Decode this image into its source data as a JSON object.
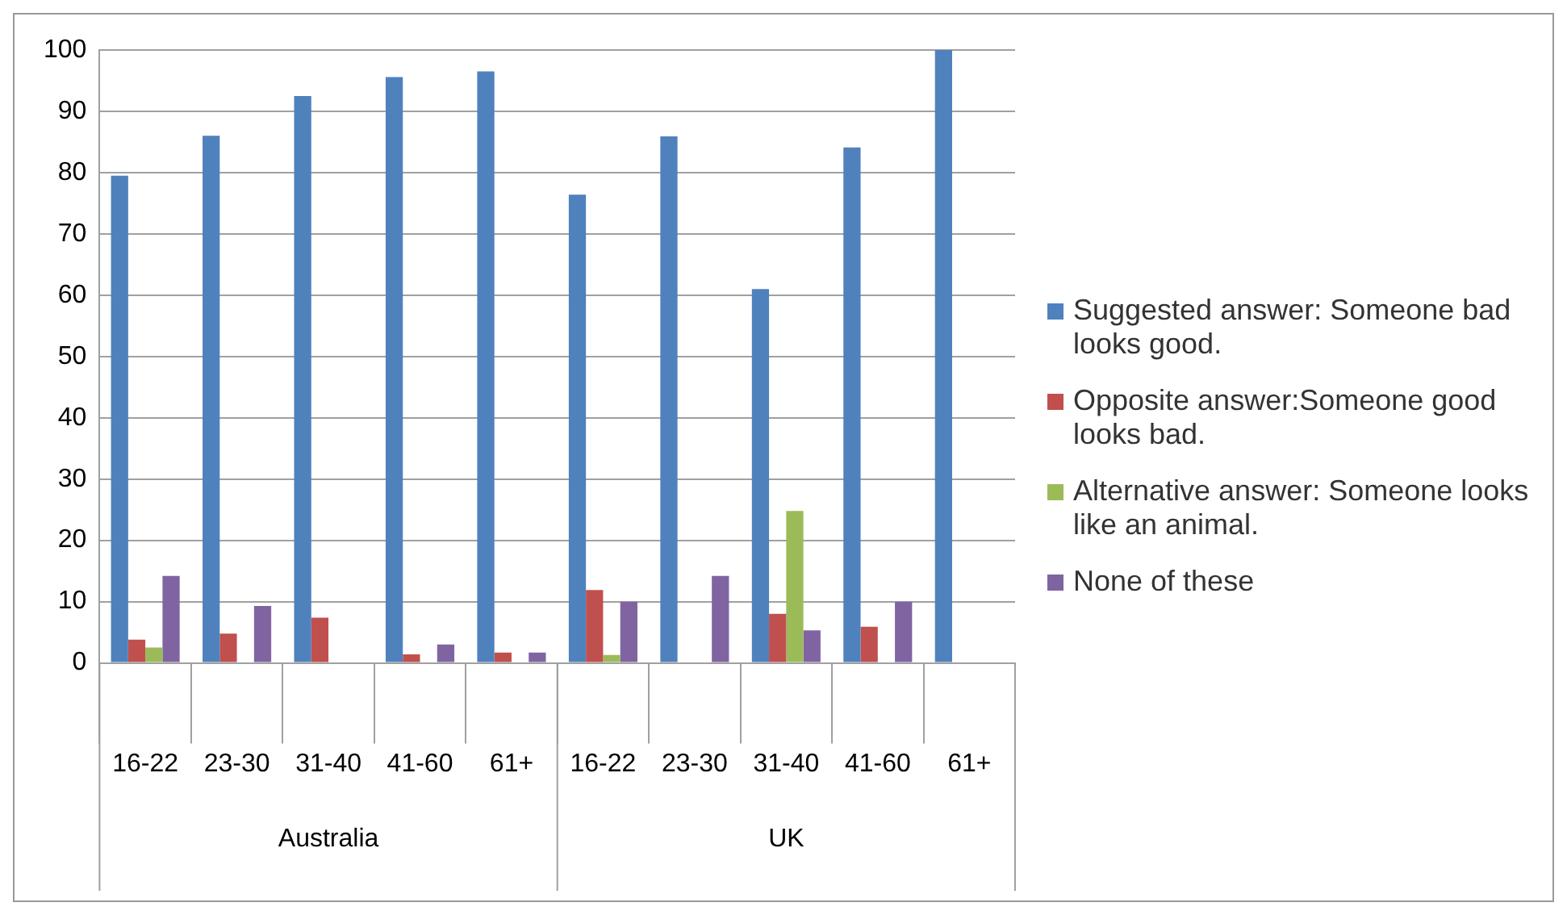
{
  "chart_data": {
    "type": "bar",
    "categories": [
      "16-22",
      "23-30",
      "31-40",
      "41-60",
      "61+",
      "16-22",
      "23-30",
      "31-40",
      "41-60",
      "61+"
    ],
    "annotations": [
      "Australia",
      "UK"
    ],
    "series": [
      {
        "name": "Suggested answer: Someone bad looks good.",
        "color": "#4f81bd",
        "values": [
          79.5,
          86,
          92.5,
          95.6,
          96.5,
          76.4,
          85.9,
          61,
          84.1,
          100
        ]
      },
      {
        "name": "Opposite answer:Someone good looks bad.",
        "color": "#c0504d",
        "values": [
          3.8,
          4.8,
          7.4,
          1.4,
          1.7,
          11.9,
          0,
          8,
          5.9,
          0
        ]
      },
      {
        "name": "Alternative answer: Someone looks like an animal.",
        "color": "#9bbb59",
        "values": [
          2.5,
          0,
          0,
          0,
          0,
          1.3,
          0,
          24.8,
          0,
          0
        ]
      },
      {
        "name": "None of these",
        "color": "#8064a2",
        "values": [
          14.2,
          9.3,
          0,
          3,
          1.7,
          10,
          14.2,
          5.3,
          10,
          0
        ]
      }
    ],
    "ylim": [
      0,
      100
    ],
    "yticks": [
      0,
      10,
      20,
      30,
      40,
      50,
      60,
      70,
      80,
      90,
      100
    ],
    "grid": "y",
    "legend": "right"
  }
}
